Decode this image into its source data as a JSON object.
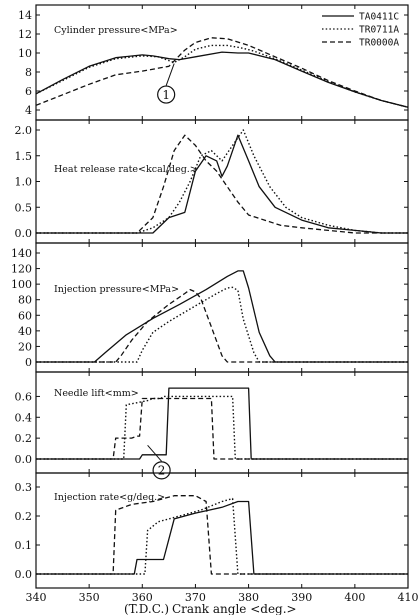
{
  "chart_data": {
    "type": "line",
    "x_axis": {
      "label": "Crank angle <deg.>",
      "tdc_label": "(T.D.C.)",
      "range": [
        340,
        410
      ],
      "ticks": [
        340,
        350,
        360,
        370,
        380,
        390,
        400,
        410
      ]
    },
    "legend": {
      "placement": "top-right",
      "entries": [
        {
          "name": "TA0411C",
          "style": "solid"
        },
        {
          "name": "TR0711A",
          "style": "dotted"
        },
        {
          "name": "TR0000A",
          "style": "dashed"
        }
      ]
    },
    "panels": [
      {
        "title": "Cylinder pressure<MPa>",
        "ylim": [
          4,
          14
        ],
        "yticks": [
          4,
          6,
          8,
          10,
          12,
          14
        ],
        "annotation": "1",
        "annotation_x": 366,
        "annotation_y": 9.1,
        "series": [
          {
            "name": "TA0411C",
            "x": [
              340,
              345,
              350,
              355,
              360,
              362,
              365,
              367,
              370,
              375,
              378,
              380,
              385,
              390,
              395,
              400,
              405,
              410
            ],
            "y": [
              5.7,
              7.2,
              8.6,
              9.5,
              9.8,
              9.7,
              9.4,
              9.3,
              9.6,
              10.1,
              10.0,
              10.0,
              9.3,
              8.1,
              6.9,
              5.9,
              5.0,
              4.3
            ]
          },
          {
            "name": "TR0711A",
            "x": [
              340,
              345,
              350,
              355,
              360,
              363,
              366,
              368,
              370,
              373,
              376,
              379,
              381,
              385,
              390,
              395,
              400,
              405,
              410
            ],
            "y": [
              5.7,
              7.1,
              8.5,
              9.4,
              9.7,
              9.6,
              9.0,
              9.6,
              10.4,
              10.8,
              10.8,
              10.5,
              10.2,
              9.4,
              8.2,
              7.0,
              5.9,
              5.0,
              4.3
            ]
          },
          {
            "name": "TR0000A",
            "x": [
              340,
              345,
              350,
              355,
              360,
              365,
              368,
              370,
              373,
              376,
              380,
              385,
              390,
              395,
              400,
              405,
              410
            ],
            "y": [
              4.5,
              5.6,
              6.7,
              7.7,
              8.1,
              8.6,
              10.3,
              11.1,
              11.6,
              11.5,
              10.8,
              9.6,
              8.4,
              7.1,
              6.0,
              5.0,
              4.3
            ]
          }
        ]
      },
      {
        "title": "Heat release rate<kcal/deg.>",
        "ylim": [
          0.0,
          2.0
        ],
        "yticks": [
          0.0,
          0.5,
          1.0,
          1.5,
          2.0
        ],
        "series": [
          {
            "name": "TA0411C",
            "x": [
              340,
              362,
              365,
              368,
              370,
              372,
              374,
              375,
              376,
              378,
              380,
              382,
              385,
              390,
              395,
              400,
              405,
              410
            ],
            "y": [
              0.0,
              0.0,
              0.3,
              0.4,
              1.2,
              1.5,
              1.4,
              1.1,
              1.3,
              1.9,
              1.4,
              0.9,
              0.5,
              0.25,
              0.1,
              0.05,
              0.0,
              0.0
            ]
          },
          {
            "name": "TR0711A",
            "x": [
              340,
              359,
              362,
              365,
              367,
              369,
              371,
              373,
              375,
              377,
              379,
              381,
              384,
              387,
              390,
              395,
              400,
              405,
              410
            ],
            "y": [
              0.0,
              0.0,
              0.1,
              0.3,
              0.6,
              1.0,
              1.5,
              1.6,
              1.4,
              1.7,
              2.0,
              1.5,
              0.9,
              0.5,
              0.3,
              0.15,
              0.05,
              0.0,
              0.0
            ]
          },
          {
            "name": "TR0000A",
            "x": [
              340,
              359,
              362,
              364,
              366,
              368,
              370,
              372,
              374,
              376,
              378,
              380,
              383,
              386,
              390,
              395,
              400,
              405,
              410
            ],
            "y": [
              0.0,
              0.0,
              0.3,
              0.9,
              1.6,
              1.9,
              1.7,
              1.4,
              1.2,
              0.9,
              0.6,
              0.35,
              0.25,
              0.15,
              0.1,
              0.05,
              0.0,
              0.0,
              0.0
            ]
          }
        ]
      },
      {
        "title": "Injection pressure<MPa>",
        "ylim": [
          0,
          140
        ],
        "yticks": [
          0,
          20,
          40,
          60,
          80,
          100,
          120,
          140
        ],
        "series": [
          {
            "name": "TA0411C",
            "x": [
              340,
              351,
              353,
              357,
              362,
              367,
              372,
              376,
              378,
              379,
              380,
              382,
              384,
              385,
              410
            ],
            "y": [
              0,
              0,
              12,
              35,
              56,
              74,
              93,
              110,
              117,
              117,
              95,
              38,
              8,
              0,
              0
            ]
          },
          {
            "name": "TR0711A",
            "x": [
              340,
              359,
              360,
              362,
              365,
              370,
              374,
              376,
              377,
              378,
              379,
              381,
              382,
              410
            ],
            "y": [
              0,
              0,
              15,
              38,
              52,
              72,
              88,
              95,
              96,
              92,
              55,
              12,
              0,
              0
            ]
          },
          {
            "name": "TR0000A",
            "x": [
              340,
              355,
              356,
              358,
              361,
              365,
              368,
              369,
              370,
              371,
              373,
              375,
              376,
              410
            ],
            "y": [
              0,
              0,
              8,
              28,
              52,
              74,
              88,
              93,
              90,
              82,
              45,
              8,
              0,
              0
            ]
          }
        ]
      },
      {
        "title": "Needle lift<mm>",
        "ylim": [
          0.0,
          0.7
        ],
        "yticks": [
          0.0,
          0.2,
          0.4,
          0.6
        ],
        "annotation": "2",
        "annotation_x": 361,
        "annotation_y": 0.15,
        "series": [
          {
            "name": "TA0411C",
            "x": [
              340,
              359.5,
              360,
              364.5,
              365,
              380,
              380.5,
              410
            ],
            "y": [
              0,
              0,
              0.04,
              0.04,
              0.68,
              0.68,
              0,
              0
            ]
          },
          {
            "name": "TR0711A",
            "x": [
              340,
              356.5,
              357,
              361,
              362,
              363.5,
              364,
              377,
              377.5,
              410
            ],
            "y": [
              0,
              0,
              0.52,
              0.56,
              0.58,
              0.58,
              0.6,
              0.6,
              0,
              0
            ]
          },
          {
            "name": "TR0000A",
            "x": [
              340,
              354.5,
              355,
              358,
              359,
              359.5,
              360,
              373,
              373.5,
              410
            ],
            "y": [
              0,
              0,
              0.2,
              0.2,
              0.22,
              0.22,
              0.58,
              0.58,
              0,
              0
            ]
          }
        ]
      },
      {
        "title": "Injection rate<g/deg.>",
        "ylim": [
          0.0,
          0.3
        ],
        "yticks": [
          0.0,
          0.1,
          0.2,
          0.3
        ],
        "series": [
          {
            "name": "TA0411C",
            "x": [
              340,
              358.5,
              359,
              364,
              366,
              370,
              375,
              378,
              380,
              381,
              410
            ],
            "y": [
              0,
              0,
              0.05,
              0.05,
              0.19,
              0.21,
              0.23,
              0.25,
              0.25,
              0,
              0
            ]
          },
          {
            "name": "TR0711A",
            "x": [
              340,
              360.5,
              361,
              363,
              367,
              371,
              375,
              377,
              378,
              410
            ],
            "y": [
              0,
              0,
              0.15,
              0.18,
              0.2,
              0.22,
              0.25,
              0.26,
              0,
              0
            ]
          },
          {
            "name": "TR0000A",
            "x": [
              340,
              354.5,
              355,
              358,
              362,
              366,
              370,
              372,
              373,
              410
            ],
            "y": [
              0,
              0,
              0.22,
              0.24,
              0.25,
              0.27,
              0.27,
              0.25,
              0,
              0
            ]
          }
        ]
      }
    ]
  }
}
